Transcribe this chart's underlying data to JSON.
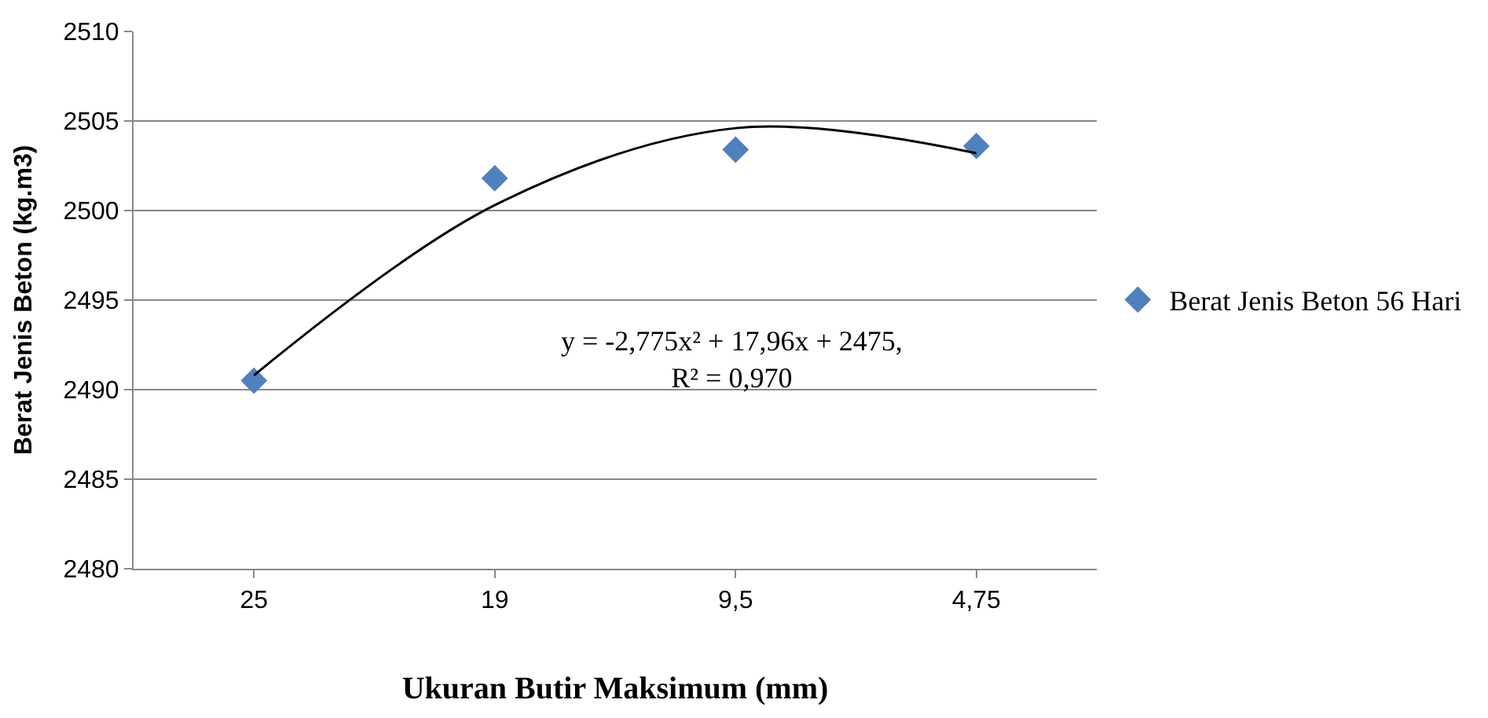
{
  "chart_data": {
    "type": "scatter",
    "xlabel": "Ukuran Butir Maksimum (mm)",
    "ylabel": "Berat Jenis Beton (kg.m3)",
    "categories": [
      "25",
      "19",
      "9,5",
      "4,75"
    ],
    "series": [
      {
        "name": "Berat Jenis Beton 56 Hari",
        "color": "#4f81bd",
        "values": [
          2490.5,
          2501.8,
          2503.4,
          2503.6
        ],
        "marker": "diamond"
      },
      {
        "type": "line",
        "color": "#000000",
        "values": [
          2490.8,
          2500.3,
          2504.6,
          2503.2
        ],
        "marker": "none"
      }
    ],
    "ylim": [
      2480,
      2510
    ],
    "yticks": [
      2480,
      2485,
      2490,
      2495,
      2500,
      2505,
      2510
    ],
    "grid": "y",
    "legend": "right",
    "annotations": [
      "y = -2,775x² + 17,96x + 2475,\nR² = 0,970"
    ]
  }
}
